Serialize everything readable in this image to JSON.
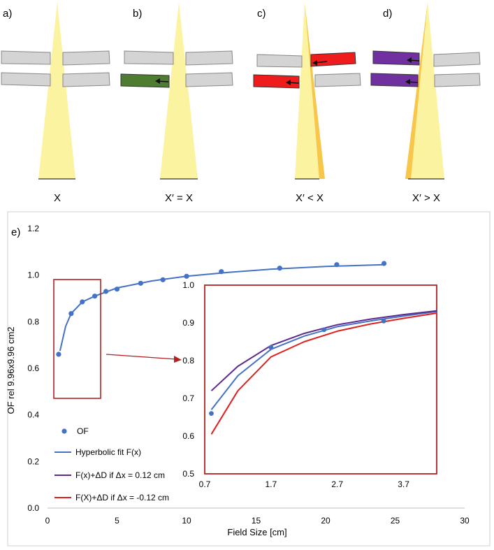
{
  "panels": [
    {
      "label": "a)",
      "caption": "X"
    },
    {
      "label": "b)",
      "caption": "X′ = X"
    },
    {
      "label": "c)",
      "caption": "X′ < X"
    },
    {
      "label": "d)",
      "caption": "X′ > X"
    }
  ],
  "colors": {
    "beam": "#fbf3a0",
    "beam_shift": "#f7c64a",
    "leaf_gray": "#d4d4d4",
    "leaf_green": "#4e7d31",
    "leaf_red": "#ee1c1c",
    "leaf_purple": "#7030a0",
    "fit_blue": "#4472c4",
    "fit_purple": "#5b2a8c",
    "fit_red": "#e0201f",
    "box_red": "#b22222"
  },
  "chart_data": {
    "panel_label": "e)",
    "type": "scatter",
    "title": "",
    "xlabel": "Field Size [cm]",
    "ylabel": "OF rel 9.96x9.96 cm2",
    "xlim": [
      0,
      30
    ],
    "ylim": [
      0.0,
      1.2
    ],
    "xticks": [
      "0",
      "5",
      "10",
      "15",
      "20",
      "25",
      "30"
    ],
    "yticks": [
      "0.0",
      "0.2",
      "0.4",
      "0.6",
      "0.8",
      "1.0",
      "1.2"
    ],
    "legend": [
      {
        "name": "OF",
        "kind": "marker"
      },
      {
        "name": "Hyperbolic fit F(x)",
        "kind": "line"
      },
      {
        "name": "F(x)+ΔD if Δx = 0.12 cm",
        "kind": "line"
      },
      {
        "name": "F(X)+ΔD if Δx = -0.12 cm",
        "kind": "line"
      }
    ],
    "series": [
      {
        "name": "OF",
        "x": [
          0.8,
          1.7,
          2.5,
          3.4,
          4.2,
          5.0,
          6.7,
          8.3,
          10.0,
          12.5,
          16.7,
          20.8,
          24.2
        ],
        "y": [
          0.66,
          0.835,
          0.885,
          0.91,
          0.93,
          0.94,
          0.965,
          0.98,
          0.995,
          1.015,
          1.03,
          1.045,
          1.05
        ]
      },
      {
        "name": "Hyperbolic fit F(x)",
        "x": [
          0.9,
          1.3,
          1.7,
          2.5,
          3.4,
          5.0,
          7.5,
          10.0,
          13.0,
          16.0,
          20.0,
          24.2
        ],
        "y": [
          0.675,
          0.78,
          0.835,
          0.885,
          0.91,
          0.945,
          0.975,
          0.995,
          1.012,
          1.025,
          1.037,
          1.045
        ]
      }
    ],
    "inset": {
      "xlim": [
        0.7,
        4.2
      ],
      "ylim": [
        0.5,
        1.0
      ],
      "xticks": [
        "0.7",
        "1.7",
        "2.7",
        "3.7"
      ],
      "yticks": [
        "0.5",
        "0.6",
        "0.7",
        "0.8",
        "0.9",
        "1.0"
      ],
      "points": {
        "x": [
          0.8,
          1.7,
          2.5,
          3.4
        ],
        "y": [
          0.66,
          0.835,
          0.882,
          0.905
        ]
      },
      "series": [
        {
          "name": "Hyperbolic fit F(x)",
          "x": [
            0.8,
            1.2,
            1.7,
            2.2,
            2.7,
            3.2,
            3.7,
            4.2
          ],
          "y": [
            0.67,
            0.76,
            0.83,
            0.865,
            0.89,
            0.905,
            0.918,
            0.93
          ]
        },
        {
          "name": "F(x)+ΔD if Δx = 0.12 cm",
          "x": [
            0.8,
            1.2,
            1.7,
            2.2,
            2.7,
            3.2,
            3.7,
            4.2
          ],
          "y": [
            0.72,
            0.785,
            0.84,
            0.872,
            0.895,
            0.91,
            0.922,
            0.932
          ]
        },
        {
          "name": "F(X)+ΔD if Δx = -0.12 cm",
          "x": [
            0.8,
            1.2,
            1.7,
            2.2,
            2.7,
            3.2,
            3.7,
            4.2
          ],
          "y": [
            0.605,
            0.72,
            0.81,
            0.85,
            0.878,
            0.897,
            0.912,
            0.926
          ]
        }
      ]
    }
  }
}
